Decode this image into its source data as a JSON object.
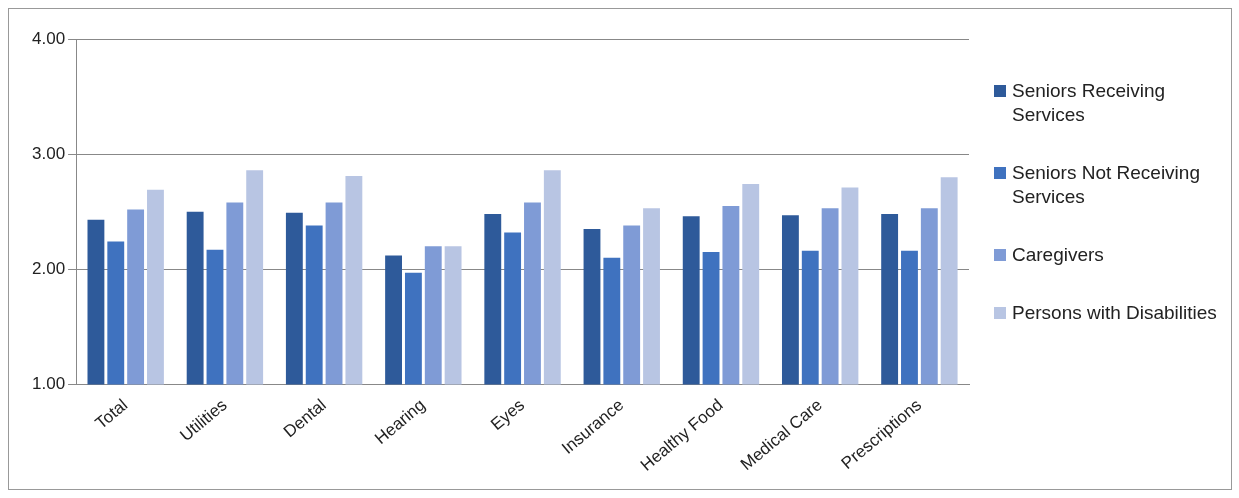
{
  "chart_data": {
    "type": "bar",
    "categories": [
      "Total",
      "Utilities",
      "Dental",
      "Hearing",
      "Eyes",
      "Insurance",
      "Healthy Food",
      "Medical Care",
      "Prescriptions"
    ],
    "series": [
      {
        "name": "Seniors Receiving Services",
        "color": "#2e5a9a",
        "values": [
          2.43,
          2.5,
          2.49,
          2.12,
          2.48,
          2.35,
          2.46,
          2.47,
          2.48
        ]
      },
      {
        "name": "Seniors Not Receiving Services",
        "color": "#3f72bf",
        "values": [
          2.24,
          2.17,
          2.38,
          1.97,
          2.32,
          2.1,
          2.15,
          2.16,
          2.16
        ]
      },
      {
        "name": "Caregivers",
        "color": "#7f9bd6",
        "values": [
          2.52,
          2.58,
          2.58,
          2.2,
          2.58,
          2.38,
          2.55,
          2.53,
          2.53
        ]
      },
      {
        "name": "Persons with Disabilities",
        "color": "#b8c5e3",
        "values": [
          2.69,
          2.86,
          2.81,
          2.2,
          2.86,
          2.53,
          2.74,
          2.71,
          2.8
        ]
      }
    ],
    "ylim": [
      1,
      4
    ],
    "yticks": [
      {
        "value": 1,
        "label": "1.00"
      },
      {
        "value": 2,
        "label": "2.00"
      },
      {
        "value": 3,
        "label": "3.00"
      },
      {
        "value": 4,
        "label": "4.00"
      }
    ],
    "grid": "y",
    "legend": "right"
  }
}
